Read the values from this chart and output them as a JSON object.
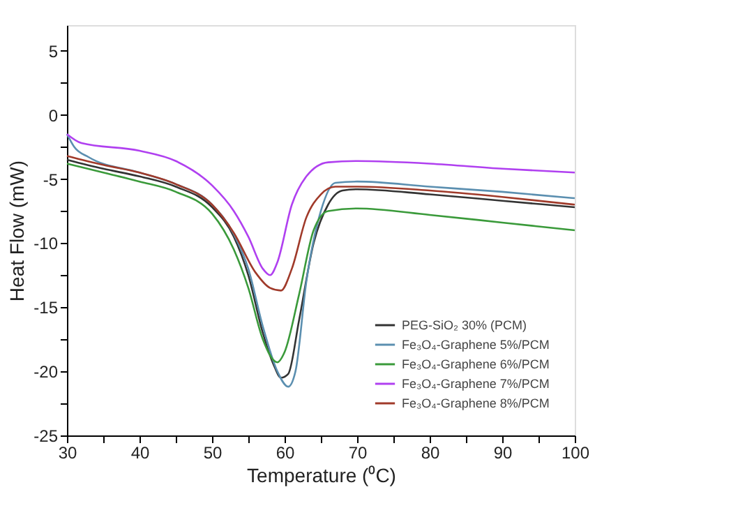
{
  "chart_data": {
    "type": "line",
    "xlabel": "Temperature (⁰C)",
    "ylabel": "Heat Flow (mW)",
    "xlim": [
      30,
      100
    ],
    "ylim": [
      -25,
      7
    ],
    "xticks": [
      30,
      {
        "value": 35,
        "label": null
      },
      40,
      {
        "value": 45,
        "label": null
      },
      50,
      {
        "value": 55,
        "label": null
      },
      60,
      {
        "value": 65,
        "label": null
      },
      70,
      {
        "value": 75,
        "label": null
      },
      80,
      {
        "value": 85,
        "label": null
      },
      90,
      {
        "value": 95,
        "label": null
      },
      100
    ],
    "yticks": [
      -25,
      {
        "value": -22.5,
        "label": null
      },
      -20,
      {
        "value": -17.5,
        "label": null
      },
      -15,
      {
        "value": -12.5,
        "label": null
      },
      -10,
      {
        "value": -7.5,
        "label": null
      },
      -5,
      {
        "value": -2.5,
        "label": null
      },
      0,
      {
        "value": 2.5,
        "label": null
      },
      5
    ],
    "grid": false,
    "legend": "bottom right",
    "marker": "none",
    "line_style": "solid",
    "series": [
      {
        "name": "PEG-SiO₂ 30% (PCM)",
        "color": "#333333",
        "x": [
          30,
          35,
          40,
          45,
          50,
          53,
          55,
          57,
          58.5,
          59.5,
          60.5,
          62,
          64,
          66,
          68,
          70,
          80,
          90,
          100
        ],
        "values": [
          -3.5,
          -4.2,
          -4.8,
          -5.6,
          -7.2,
          -9.5,
          -12.5,
          -17,
          -19.5,
          -20.5,
          -20.2,
          -16,
          -10,
          -7,
          -5.9,
          -5.8,
          -6.2,
          -6.7,
          -7.2
        ]
      },
      {
        "name": "Fe₃O₄-Graphene 5%/PCM",
        "color": "#5b8fb0",
        "x": [
          30,
          31,
          33,
          40,
          45,
          50,
          53,
          55,
          57,
          59,
          60.5,
          61.5,
          63,
          65,
          67,
          70,
          80,
          90,
          100
        ],
        "values": [
          -1.5,
          -2.5,
          -3.3,
          -4.5,
          -5.4,
          -7,
          -9.3,
          -12,
          -16.5,
          -20,
          -21.2,
          -20,
          -13,
          -7.5,
          -5.3,
          -5.2,
          -5.6,
          -6,
          -6.5
        ]
      },
      {
        "name": "Fe₃O₄-Graphene 6%/PCM",
        "color": "#3a9a3a",
        "x": [
          30,
          35,
          40,
          45,
          50,
          53,
          55,
          57,
          59,
          60,
          62,
          64,
          66,
          70,
          80,
          90,
          100
        ],
        "values": [
          -3.8,
          -4.5,
          -5.2,
          -6,
          -7.7,
          -10.5,
          -13.5,
          -17.5,
          -19.3,
          -18.5,
          -14,
          -9,
          -7.5,
          -7.3,
          -7.8,
          -8.4,
          -9
        ]
      },
      {
        "name": "Fe₃O₄-Graphene 7%/PCM",
        "color": "#b040f0",
        "x": [
          30,
          32,
          40,
          45,
          50,
          53,
          55,
          57,
          58,
          59,
          61,
          63,
          66,
          70,
          80,
          90,
          100
        ],
        "values": [
          -1.5,
          -2.2,
          -2.8,
          -3.6,
          -5.5,
          -7.5,
          -9.5,
          -12,
          -12.5,
          -11.5,
          -7,
          -4.8,
          -3.7,
          -3.6,
          -3.8,
          -4.2,
          -4.5
        ]
      },
      {
        "name": "Fe₃O₄-Graphene 8%/PCM",
        "color": "#a03a2a",
        "x": [
          30,
          35,
          40,
          45,
          50,
          53,
          56,
          58,
          59.5,
          61,
          63,
          65,
          67,
          70,
          80,
          90,
          100
        ],
        "values": [
          -3.2,
          -3.9,
          -4.5,
          -5.4,
          -7,
          -9.2,
          -12.3,
          -13.5,
          -13.7,
          -12,
          -8,
          -6.2,
          -5.6,
          -5.6,
          -5.9,
          -6.4,
          -7
        ]
      }
    ]
  }
}
